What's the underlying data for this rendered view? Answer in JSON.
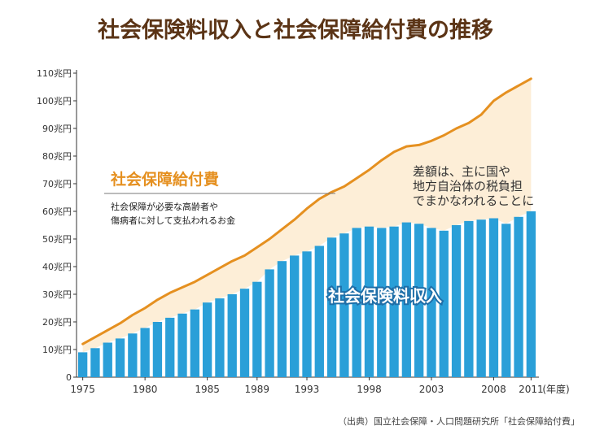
{
  "title": "社会保険料収入と社会保障給付費の推移",
  "labels": {
    "benefit_title": "社会保障給付費",
    "benefit_desc_1": "社会保障が必要な高齢者や",
    "benefit_desc_2": "傷病者に対して支払われるお金",
    "revenue_label": "社会保険料収入",
    "gap_line_1": "差額は、主に国や",
    "gap_line_2": "地方自治体の税負担",
    "gap_line_3": "でまかなわれることに"
  },
  "source": "（出典）国立社会保障・人口問題研究所「社会保障給付費」",
  "colors": {
    "title": "#5b3416",
    "bar": "#2a9fd8",
    "line": "#e59020",
    "area": "#fdeed7",
    "benefit_title": "#e59020",
    "revenue_label": "#ffffff",
    "revenue_stroke": "#1f6fa8",
    "axis": "#333333"
  },
  "chart_data": {
    "type": "bar",
    "x_start": 1975,
    "x_end": 2011,
    "x_tick_labels": [
      "1975",
      "1980",
      "1985",
      "1989",
      "1993",
      "1998",
      "2003",
      "2008",
      "2011"
    ],
    "x_unit_label": "(年度)",
    "y_tick_labels": [
      "0",
      "10兆円",
      "20兆円",
      "30兆円",
      "40兆円",
      "50兆円",
      "60兆円",
      "70兆円",
      "80兆円",
      "90兆円",
      "100兆円",
      "110兆円"
    ],
    "ylim": [
      0,
      110
    ],
    "series": [
      {
        "name": "社会保険料収入",
        "type": "bar",
        "values": [
          9,
          10.5,
          12.5,
          14,
          15.8,
          17.8,
          20,
          21.5,
          23,
          24.5,
          27,
          28.5,
          30,
          32,
          34.5,
          39,
          42,
          44,
          45.5,
          47.5,
          50.5,
          52,
          54,
          54.5,
          54,
          54.5,
          56,
          55.5,
          54,
          53,
          55,
          56.5,
          57,
          57.5,
          55.5,
          58,
          60
        ]
      },
      {
        "name": "社会保障給付費",
        "type": "area",
        "values": [
          12,
          14.5,
          17,
          19.5,
          22.5,
          25,
          28,
          30.5,
          32.5,
          34.5,
          37,
          39.5,
          42,
          44,
          47,
          50,
          53.5,
          57,
          61,
          64.5,
          67,
          69,
          72,
          75,
          78.5,
          81.5,
          83.5,
          84,
          85.5,
          87.5,
          90,
          92,
          95,
          100,
          103,
          105.5,
          108
        ]
      }
    ]
  }
}
